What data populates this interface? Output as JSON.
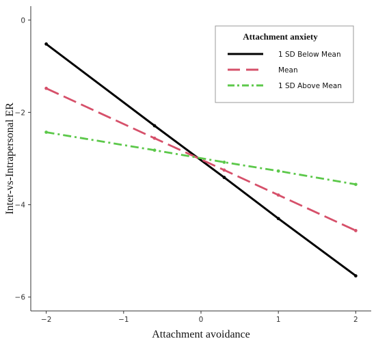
{
  "chart_data": {
    "type": "line",
    "title": "",
    "xlabel": "Attachment avoidance",
    "ylabel": "Inter-vs-Intrapersonal ER",
    "xlim": [
      -2.2,
      2.2
    ],
    "ylim": [
      -6.3,
      0.3
    ],
    "x_ticks": [
      -2,
      -1,
      0,
      1,
      2
    ],
    "x_tick_labels": [
      "−2",
      "−1",
      "0",
      "1",
      "2"
    ],
    "y_ticks": [
      0,
      -2,
      -4,
      -6
    ],
    "y_tick_labels": [
      "0",
      "−2",
      "−4",
      "−6"
    ],
    "grid": false,
    "legend": {
      "title": "Attachment anxiety",
      "position": "top-right"
    },
    "series": [
      {
        "name": "1 SD Below Mean",
        "color": "#000000",
        "style": "solid",
        "x": [
          -2,
          -0.6,
          0.3,
          1,
          2
        ],
        "y": [
          -0.52,
          -2.29,
          -3.41,
          -4.3,
          -5.54
        ]
      },
      {
        "name": "Mean",
        "color": "#d6506a",
        "style": "dashed",
        "x": [
          -2,
          -0.6,
          0.3,
          1,
          2
        ],
        "y": [
          -1.48,
          -2.56,
          -3.25,
          -3.79,
          -4.56
        ]
      },
      {
        "name": "1 SD Above Mean",
        "color": "#5cc84a",
        "style": "dashdot",
        "x": [
          -2,
          -0.6,
          0.3,
          1,
          2
        ],
        "y": [
          -2.43,
          -2.82,
          -3.08,
          -3.27,
          -3.56
        ]
      }
    ]
  }
}
